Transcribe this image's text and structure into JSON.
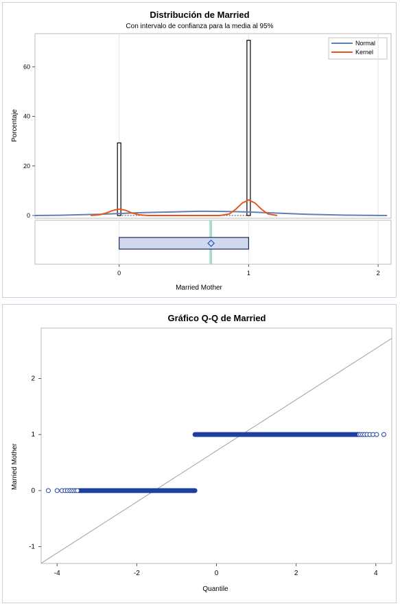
{
  "chart_data": [
    {
      "type": "histogram",
      "title": "Distribución de Married",
      "subtitle": "Con intervalo de confianza para la media al 95%",
      "xlabel": "Married Mother",
      "ylabel": "Porcentaje",
      "xlim": [
        -0.65,
        2.1
      ],
      "ylim": [
        0,
        72
      ],
      "x_ticks": [
        0,
        1,
        2
      ],
      "x_tick_labels": [
        "0",
        "1",
        "2"
      ],
      "y_ticks": [
        0,
        20,
        40,
        60
      ],
      "y_tick_labels": [
        "0",
        "20",
        "40",
        "60"
      ],
      "bars": [
        {
          "x": 0,
          "value": 29.3
        },
        {
          "x": 1,
          "value": 70.7
        }
      ],
      "series": [
        {
          "name": "Normal",
          "color": "#5e7fb8",
          "x": [
            -0.65,
            -0.45,
            -0.3,
            -0.15,
            0.0,
            0.15,
            0.3,
            0.45,
            0.6,
            0.71,
            0.85,
            1.0,
            1.15,
            1.3,
            1.45,
            1.6,
            1.75,
            1.9,
            2.07
          ],
          "y": [
            0.0,
            0.1,
            0.3,
            0.5,
            0.8,
            1.1,
            1.3,
            1.5,
            1.7,
            1.7,
            1.6,
            1.4,
            1.1,
            0.8,
            0.5,
            0.3,
            0.15,
            0.05,
            0.0
          ]
        },
        {
          "name": "Kernel",
          "color": "#e8561a",
          "x": [
            -0.22,
            -0.15,
            -0.1,
            -0.05,
            0.0,
            0.05,
            0.1,
            0.15,
            0.22,
            0.3,
            0.78,
            0.85,
            0.9,
            0.95,
            1.0,
            1.05,
            1.1,
            1.15,
            1.22
          ],
          "y": [
            0.0,
            0.3,
            1.0,
            2.0,
            2.6,
            2.1,
            1.0,
            0.3,
            0.0,
            0.0,
            0.0,
            0.6,
            2.5,
            5.0,
            6.3,
            5.0,
            2.5,
            0.6,
            0.0
          ]
        }
      ],
      "legend": {
        "position": "top-right",
        "entries": [
          "Normal",
          "Kernel"
        ]
      },
      "boxplot": {
        "q1": 0,
        "median": 1,
        "q3": 1,
        "whisker_low": 0,
        "whisker_high": 1,
        "mean": 0.71,
        "ci_low": 0.7,
        "ci_high": 0.72
      },
      "colors": {
        "bar_fill": "#ffffff",
        "bar_stroke": "#000000",
        "box_fill": "#d0d8ec",
        "box_stroke": "#1a2a5a",
        "mean_marker": "#2050c0",
        "ci_band": "#a8dcc8"
      }
    },
    {
      "type": "scatter",
      "title": "Gráfico Q-Q de Married",
      "xlabel": "Quantile",
      "ylabel": "Married Mother",
      "xlim": [
        -4.4,
        4.4
      ],
      "ylim": [
        -1.3,
        2.9
      ],
      "x_ticks": [
        -4,
        -2,
        0,
        2,
        4
      ],
      "x_tick_labels": [
        "-4",
        "-2",
        "0",
        "2",
        "4"
      ],
      "y_ticks": [
        -1,
        0,
        1,
        2
      ],
      "y_tick_labels": [
        "-1",
        "0",
        "1",
        "2"
      ],
      "reference_line": {
        "slope": 0.456,
        "intercept": 0.71
      },
      "point_groups": [
        {
          "y": 0,
          "dense_range": [
            -3.45,
            -0.54
          ],
          "sparse_points": [
            -4.22,
            -4.0,
            -3.88,
            -3.8,
            -3.74,
            -3.68,
            -3.63,
            -3.58,
            -3.53,
            -3.49
          ]
        },
        {
          "y": 1,
          "dense_range": [
            -0.54,
            3.55
          ],
          "sparse_points": [
            3.58,
            3.62,
            3.67,
            3.72,
            3.78,
            3.85,
            3.93,
            4.02,
            4.2
          ]
        }
      ],
      "colors": {
        "marker": "#1c3fa0",
        "reference_line": "#a0a0a0"
      }
    }
  ]
}
